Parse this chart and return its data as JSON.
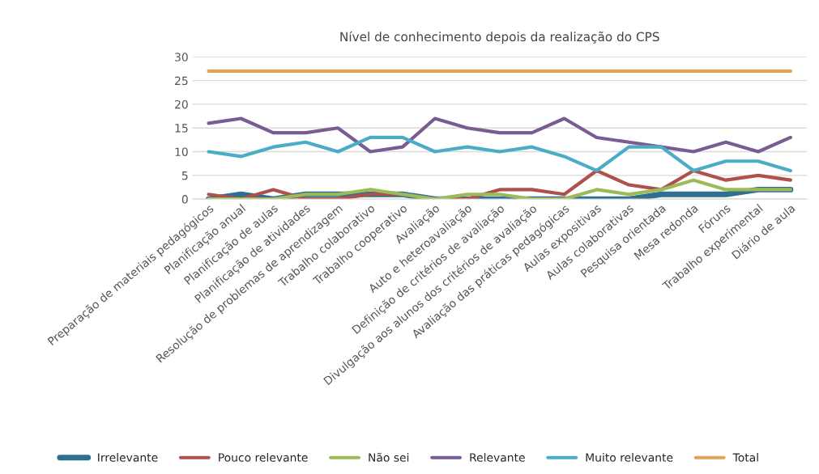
{
  "chart_data": {
    "type": "line",
    "title": "Nível de conhecimento depois da realização do CPS",
    "categories": [
      "Preparação de materiais pedagógicos",
      "Planificação anual",
      "Planificação de aulas",
      "Planificação de atividades",
      "Resolução de problemas de aprendizagem",
      "Trabalho colaborativo",
      "Trabalho cooperativo",
      "Avaliação",
      "Auto e heteroavaliação",
      "Definição de critérios de avaliação",
      "Divulgação aos alunos dos critérios de avaliação",
      "Avaliação das práticas pedagógicas",
      "Aulas expositivas",
      "Aulas colaborativas",
      "Pesquisa orientada",
      "Mesa redonda",
      "Fóruns",
      "Trabalho experimental",
      "Diário de aula"
    ],
    "series": [
      {
        "name": "Irrelevante",
        "color": "#2f6f8f",
        "values": [
          0,
          1,
          0,
          1,
          1,
          1,
          1,
          0,
          0,
          0,
          0,
          0,
          0,
          0,
          1,
          1,
          1,
          2,
          2
        ]
      },
      {
        "name": "Pouco relevante",
        "color": "#b0504c",
        "values": [
          1,
          0,
          2,
          0,
          0,
          1,
          1,
          0,
          0,
          2,
          2,
          1,
          6,
          3,
          2,
          6,
          4,
          5,
          4
        ]
      },
      {
        "name": "Não sei",
        "color": "#9bbb59",
        "values": [
          0,
          0,
          0,
          1,
          1,
          2,
          1,
          0,
          1,
          1,
          0,
          0,
          2,
          1,
          2,
          4,
          2,
          2,
          2
        ]
      },
      {
        "name": "Relevante",
        "color": "#7a5c94",
        "values": [
          16,
          17,
          14,
          14,
          15,
          10,
          11,
          17,
          15,
          14,
          14,
          17,
          13,
          12,
          11,
          10,
          12,
          10,
          13
        ]
      },
      {
        "name": "Muito relevante",
        "color": "#4bacc6",
        "values": [
          10,
          9,
          11,
          12,
          10,
          13,
          13,
          10,
          11,
          10,
          11,
          9,
          6,
          11,
          11,
          6,
          8,
          8,
          6
        ]
      },
      {
        "name": "Total",
        "color": "#e0a35a",
        "values": [
          27,
          27,
          27,
          27,
          27,
          27,
          27,
          27,
          27,
          27,
          27,
          27,
          27,
          27,
          27,
          27,
          27,
          27,
          27
        ]
      }
    ],
    "ylim": [
      0,
      30
    ],
    "yticks": [
      0,
      5,
      10,
      15,
      20,
      25,
      30
    ],
    "grid": "y",
    "legend": "bottom",
    "marker": "none",
    "line_style": "solid"
  }
}
